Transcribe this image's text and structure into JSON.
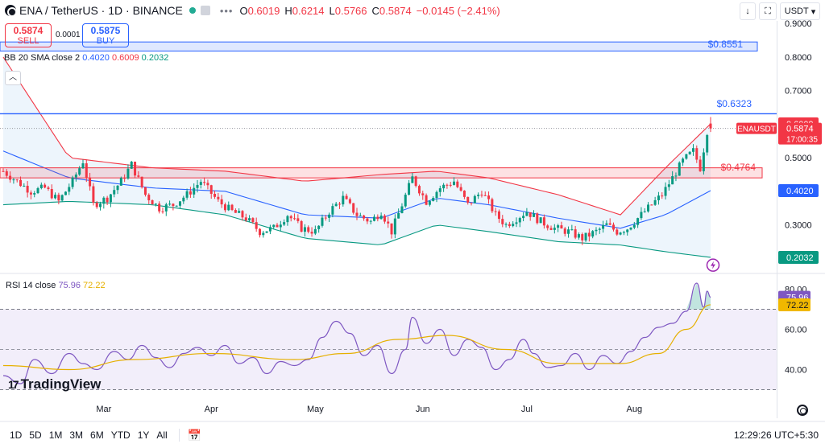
{
  "header": {
    "symbol": "ENA / TetherUS · 1D · BINANCE",
    "more_glyph": "•••",
    "o_label": "O",
    "o_value": "0.6019",
    "h_label": "H",
    "h_value": "0.6214",
    "l_label": "L",
    "l_value": "0.5766",
    "c_label": "C",
    "c_value": "0.5874",
    "change": "−0.0145 (−2.41%)"
  },
  "trade": {
    "sell_price": "0.5874",
    "sell_label": "SELL",
    "spread": "0.0001",
    "buy_price": "0.5875",
    "buy_label": "BUY"
  },
  "bb_legend": {
    "name": "BB 20 SMA close 2",
    "basis": "0.4020",
    "upper": "0.6009",
    "lower": "0.2032"
  },
  "rsi_legend": {
    "name": "RSI 14 close",
    "rsi": "75.96",
    "ma": "72.22"
  },
  "toolbar": {
    "down_glyph": "↓",
    "square_glyph": "⛶",
    "currency": "USDT",
    "chevron": "▾",
    "collapse_glyph": "︿"
  },
  "ranges": [
    "1D",
    "5D",
    "1M",
    "3M",
    "6M",
    "YTD",
    "1Y",
    "All"
  ],
  "calendar_glyph": "📅",
  "clock": "12:29:26 UTC+5:30",
  "brand": {
    "mark": "17",
    "name": "TradingView"
  },
  "colors": {
    "up": "#089981",
    "down": "#f23645",
    "basis": "#2962ff",
    "upper": "#f23645",
    "lower": "#089981",
    "band_fill": "#e8f2fb",
    "rsi": "#7e57c2",
    "rsi_ma": "#e6b000",
    "rsi_fill": "#f2eefa",
    "resistance": "#2962ff",
    "hline_blue": "#2962ff"
  },
  "chart_data": [
    {
      "type": "candlestick",
      "title": "ENA / TetherUS · 1D · BINANCE",
      "ylim": [
        0.16,
        0.97
      ],
      "yticks": [
        0.3,
        0.4,
        0.5,
        0.6,
        0.7,
        0.8,
        0.9
      ],
      "ytick_labels": [
        "0.3000",
        "0.4000",
        "0.5000",
        "0.6000",
        "0.7000",
        "0.8000",
        "0.9000"
      ],
      "x_axis_labels": [
        "Mar",
        "Apr",
        "May",
        "Jun",
        "Jul",
        "Aug"
      ],
      "x_axis_label_dates": [
        "2024-03-01",
        "2024-04-01",
        "2024-05-01",
        "2024-06-01",
        "2024-07-01",
        "2024-08-01"
      ],
      "close_anchors": [
        [
          "2024-02-01",
          0.46
        ],
        [
          "2024-02-05",
          0.43
        ],
        [
          "2024-02-09",
          0.4
        ],
        [
          "2024-02-13",
          0.41
        ],
        [
          "2024-02-17",
          0.37
        ],
        [
          "2024-02-21",
          0.43
        ],
        [
          "2024-02-24",
          0.49
        ],
        [
          "2024-02-27",
          0.36
        ],
        [
          "2024-03-02",
          0.38
        ],
        [
          "2024-03-06",
          0.43
        ],
        [
          "2024-03-09",
          0.48
        ],
        [
          "2024-03-13",
          0.39
        ],
        [
          "2024-03-17",
          0.35
        ],
        [
          "2024-03-21",
          0.36
        ],
        [
          "2024-03-25",
          0.39
        ],
        [
          "2024-03-29",
          0.43
        ],
        [
          "2024-04-03",
          0.37
        ],
        [
          "2024-04-07",
          0.34
        ],
        [
          "2024-04-11",
          0.32
        ],
        [
          "2024-04-15",
          0.28
        ],
        [
          "2024-04-19",
          0.29
        ],
        [
          "2024-04-23",
          0.33
        ],
        [
          "2024-04-27",
          0.29
        ],
        [
          "2024-05-01",
          0.28
        ],
        [
          "2024-05-05",
          0.34
        ],
        [
          "2024-05-09",
          0.38
        ],
        [
          "2024-05-13",
          0.33
        ],
        [
          "2024-05-17",
          0.31
        ],
        [
          "2024-05-20",
          0.34
        ],
        [
          "2024-05-23",
          0.28
        ],
        [
          "2024-05-26",
          0.36
        ],
        [
          "2024-05-29",
          0.44
        ],
        [
          "2024-06-02",
          0.37
        ],
        [
          "2024-06-06",
          0.41
        ],
        [
          "2024-06-10",
          0.43
        ],
        [
          "2024-06-14",
          0.36
        ],
        [
          "2024-06-18",
          0.4
        ],
        [
          "2024-06-22",
          0.33
        ],
        [
          "2024-06-25",
          0.3
        ],
        [
          "2024-06-28",
          0.32
        ],
        [
          "2024-07-01",
          0.34
        ],
        [
          "2024-07-05",
          0.31
        ],
        [
          "2024-07-09",
          0.29
        ],
        [
          "2024-07-13",
          0.28
        ],
        [
          "2024-07-17",
          0.26
        ],
        [
          "2024-07-21",
          0.28
        ],
        [
          "2024-07-24",
          0.3
        ],
        [
          "2024-07-27",
          0.28
        ],
        [
          "2024-07-30",
          0.29
        ],
        [
          "2024-08-03",
          0.33
        ],
        [
          "2024-08-06",
          0.36
        ],
        [
          "2024-08-09",
          0.39
        ],
        [
          "2024-08-12",
          0.44
        ],
        [
          "2024-08-15",
          0.49
        ],
        [
          "2024-08-18",
          0.52
        ],
        [
          "2024-08-20",
          0.47
        ],
        [
          "2024-08-22",
          0.58
        ],
        [
          "2024-08-23",
          0.5874
        ]
      ],
      "last_candle": {
        "open": 0.6019,
        "high": 0.6214,
        "low": 0.5766,
        "close": 0.5874
      },
      "bollinger": {
        "basis": [
          [
            "2024-02-01",
            0.52
          ],
          [
            "2024-02-20",
            0.44
          ],
          [
            "2024-03-15",
            0.41
          ],
          [
            "2024-04-05",
            0.4
          ],
          [
            "2024-04-28",
            0.33
          ],
          [
            "2024-05-20",
            0.32
          ],
          [
            "2024-06-05",
            0.38
          ],
          [
            "2024-06-20",
            0.36
          ],
          [
            "2024-07-10",
            0.32
          ],
          [
            "2024-07-28",
            0.29
          ],
          [
            "2024-08-10",
            0.33
          ],
          [
            "2024-08-23",
            0.402
          ]
        ],
        "upper": [
          [
            "2024-02-01",
            0.8
          ],
          [
            "2024-02-20",
            0.5
          ],
          [
            "2024-03-15",
            0.47
          ],
          [
            "2024-04-05",
            0.46
          ],
          [
            "2024-04-28",
            0.43
          ],
          [
            "2024-05-20",
            0.45
          ],
          [
            "2024-06-05",
            0.46
          ],
          [
            "2024-06-20",
            0.44
          ],
          [
            "2024-07-10",
            0.39
          ],
          [
            "2024-07-28",
            0.33
          ],
          [
            "2024-08-10",
            0.47
          ],
          [
            "2024-08-23",
            0.6009
          ]
        ],
        "lower": [
          [
            "2024-02-01",
            0.36
          ],
          [
            "2024-02-20",
            0.37
          ],
          [
            "2024-03-15",
            0.36
          ],
          [
            "2024-04-05",
            0.33
          ],
          [
            "2024-04-28",
            0.26
          ],
          [
            "2024-05-20",
            0.24
          ],
          [
            "2024-06-05",
            0.3
          ],
          [
            "2024-06-20",
            0.28
          ],
          [
            "2024-07-10",
            0.25
          ],
          [
            "2024-07-28",
            0.24
          ],
          [
            "2024-08-10",
            0.22
          ],
          [
            "2024-08-23",
            0.2032
          ]
        ]
      },
      "horizontal_levels": [
        {
          "value": 0.8551,
          "label": "$0.8551"
        },
        {
          "value": 0.6323,
          "label": "$0.6323"
        },
        {
          "value": 0.4764,
          "label": "$0.4764"
        }
      ],
      "resistance_zone": {
        "from": 0.44,
        "to": 0.47
      },
      "axis_tags": [
        {
          "label": "0.6009",
          "value": 0.6009,
          "color": "#f23645"
        },
        {
          "label": "0.5874",
          "value": 0.5874,
          "color": "#f23645",
          "symbol": "ENAUSDT",
          "countdown": "17:00:35"
        },
        {
          "label": "0.4020",
          "value": 0.402,
          "color": "#2962ff"
        },
        {
          "label": "0.2032",
          "value": 0.2032,
          "color": "#089981"
        }
      ]
    },
    {
      "type": "line",
      "title": "RSI 14 close",
      "ylim": [
        27,
        87
      ],
      "yticks": [
        40,
        60,
        80
      ],
      "ytick_labels": [
        "40.00",
        "60.00",
        "80.00"
      ],
      "guide_levels": [
        30,
        50,
        70
      ],
      "rsi": [
        [
          "2024-02-01",
          37
        ],
        [
          "2024-02-06",
          33
        ],
        [
          "2024-02-10",
          45
        ],
        [
          "2024-02-15",
          38
        ],
        [
          "2024-02-20",
          48
        ],
        [
          "2024-02-24",
          43
        ],
        [
          "2024-02-28",
          40
        ],
        [
          "2024-03-04",
          49
        ],
        [
          "2024-03-08",
          45
        ],
        [
          "2024-03-12",
          52
        ],
        [
          "2024-03-16",
          46
        ],
        [
          "2024-03-20",
          41
        ],
        [
          "2024-03-24",
          48
        ],
        [
          "2024-03-28",
          51
        ],
        [
          "2024-04-01",
          47
        ],
        [
          "2024-04-05",
          52
        ],
        [
          "2024-04-09",
          43
        ],
        [
          "2024-04-13",
          46
        ],
        [
          "2024-04-17",
          38
        ],
        [
          "2024-04-21",
          44
        ],
        [
          "2024-04-25",
          42
        ],
        [
          "2024-04-29",
          45
        ],
        [
          "2024-05-03",
          56
        ],
        [
          "2024-05-07",
          64
        ],
        [
          "2024-05-11",
          58
        ],
        [
          "2024-05-15",
          47
        ],
        [
          "2024-05-19",
          52
        ],
        [
          "2024-05-23",
          38
        ],
        [
          "2024-05-27",
          50
        ],
        [
          "2024-05-29",
          66
        ],
        [
          "2024-06-02",
          53
        ],
        [
          "2024-06-06",
          60
        ],
        [
          "2024-06-10",
          47
        ],
        [
          "2024-06-14",
          55
        ],
        [
          "2024-06-18",
          51
        ],
        [
          "2024-06-22",
          40
        ],
        [
          "2024-06-26",
          45
        ],
        [
          "2024-06-30",
          55
        ],
        [
          "2024-07-03",
          48
        ],
        [
          "2024-07-07",
          41
        ],
        [
          "2024-07-11",
          42
        ],
        [
          "2024-07-15",
          48
        ],
        [
          "2024-07-19",
          40
        ],
        [
          "2024-07-23",
          47
        ],
        [
          "2024-07-27",
          43
        ],
        [
          "2024-07-31",
          49
        ],
        [
          "2024-08-04",
          56
        ],
        [
          "2024-08-08",
          61
        ],
        [
          "2024-08-12",
          63
        ],
        [
          "2024-08-16",
          69
        ],
        [
          "2024-08-19",
          83
        ],
        [
          "2024-08-21",
          71
        ],
        [
          "2024-08-22",
          79
        ],
        [
          "2024-08-23",
          75.96
        ]
      ],
      "rsi_ma": [
        [
          "2024-02-01",
          42
        ],
        [
          "2024-02-20",
          40
        ],
        [
          "2024-03-10",
          45
        ],
        [
          "2024-04-01",
          48
        ],
        [
          "2024-04-25",
          45
        ],
        [
          "2024-05-10",
          48
        ],
        [
          "2024-05-25",
          55
        ],
        [
          "2024-06-08",
          57
        ],
        [
          "2024-06-25",
          50
        ],
        [
          "2024-07-10",
          43
        ],
        [
          "2024-07-28",
          43
        ],
        [
          "2024-08-08",
          48
        ],
        [
          "2024-08-16",
          60
        ],
        [
          "2024-08-23",
          72.22
        ]
      ],
      "axis_tags": [
        {
          "label": "75.96",
          "value": 75.96,
          "color": "#7e57c2"
        },
        {
          "label": "72.22",
          "value": 72.22,
          "color": "#f0b800"
        }
      ]
    }
  ]
}
